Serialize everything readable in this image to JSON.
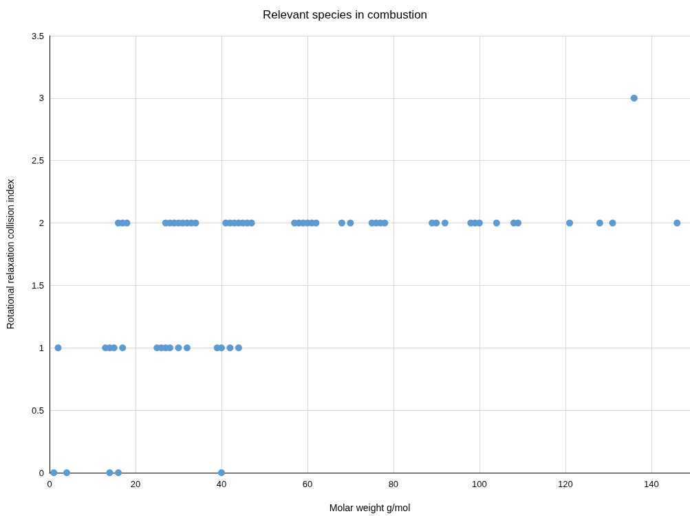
{
  "chart_data": {
    "type": "scatter",
    "title": "Relevant species in combustion",
    "xlabel": "Molar weight g/mol",
    "ylabel": "Rotational relaxation collision index",
    "x": [
      1,
      4,
      14,
      16,
      40,
      2,
      13,
      14,
      15,
      17,
      25,
      26,
      27,
      28,
      30,
      32,
      39,
      40,
      42,
      44,
      16,
      17,
      18,
      27,
      28,
      29,
      30,
      31,
      32,
      33,
      34,
      41,
      42,
      43,
      44,
      45,
      46,
      47,
      57,
      58,
      59,
      60,
      61,
      62,
      68,
      70,
      75,
      76,
      77,
      78,
      89,
      90,
      92,
      98,
      99,
      100,
      104,
      108,
      109,
      121,
      128,
      131,
      146,
      136
    ],
    "values": [
      0,
      0,
      0,
      0,
      0,
      1,
      1,
      1,
      1,
      1,
      1,
      1,
      1,
      1,
      1,
      1,
      1,
      1,
      1,
      1,
      2,
      2,
      2,
      2,
      2,
      2,
      2,
      2,
      2,
      2,
      2,
      2,
      2,
      2,
      2,
      2,
      2,
      2,
      2,
      2,
      2,
      2,
      2,
      2,
      2,
      2,
      2,
      2,
      2,
      2,
      2,
      2,
      2,
      2,
      2,
      2,
      2,
      2,
      2,
      2,
      2,
      2,
      2,
      3
    ],
    "color": "#5b9bd5",
    "marker": "circle",
    "xlim": [
      0,
      149
    ],
    "xticks": [
      0,
      20,
      40,
      60,
      80,
      100,
      120,
      140
    ],
    "ylim": [
      0,
      3.5
    ],
    "yticks": [
      0,
      0.5,
      1,
      1.5,
      2,
      2.5,
      3,
      3.5
    ],
    "grid": true
  }
}
